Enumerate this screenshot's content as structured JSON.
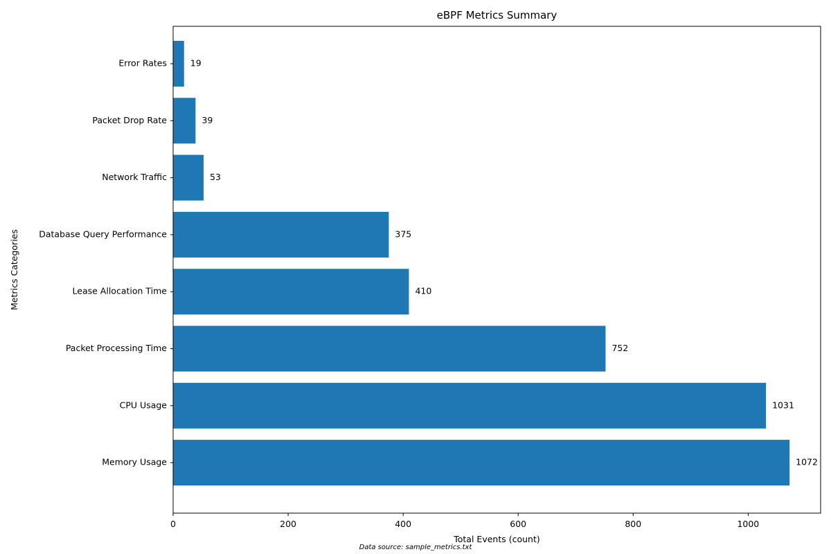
{
  "chart_data": {
    "type": "bar",
    "orientation": "horizontal",
    "title": "eBPF Metrics Summary",
    "xlabel": "Total Events (count)",
    "ylabel": "Metrics Categories",
    "categories": [
      "Memory Usage",
      "CPU Usage",
      "Packet Processing Time",
      "Lease Allocation Time",
      "Database Query Performance",
      "Network Traffic",
      "Packet Drop Rate",
      "Error Rates"
    ],
    "values": [
      1072,
      1031,
      752,
      410,
      375,
      53,
      39,
      19
    ],
    "value_labels": [
      "1072",
      "1031",
      "752",
      "410",
      "375",
      "53",
      "39",
      "19"
    ],
    "xlim": [
      0,
      1126
    ],
    "xticks": [
      0,
      200,
      400,
      600,
      800,
      1000
    ],
    "xtick_labels": [
      "0",
      "200",
      "400",
      "600",
      "800",
      "1000"
    ],
    "bar_color": "#1f77b4",
    "grid": false,
    "legend": "none",
    "footnote": "Data source: sample_metrics.txt"
  }
}
